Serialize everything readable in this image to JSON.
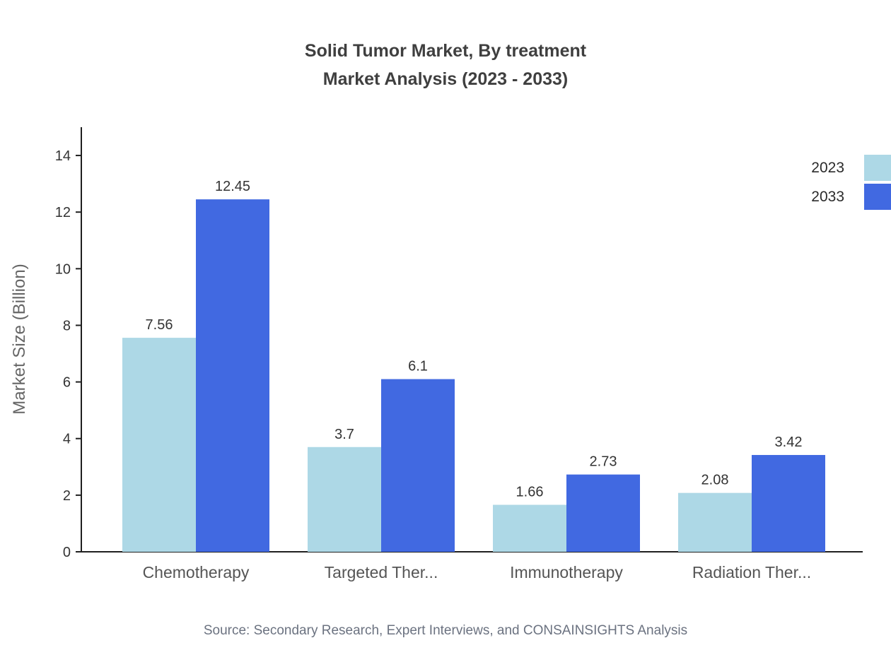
{
  "title": {
    "line1": "Solid Tumor Market, By treatment",
    "line2": "Market Analysis (2023 - 2033)"
  },
  "source": "Source: Secondary Research, Expert Interviews, and CONSAINSIGHTS Analysis",
  "colors": {
    "series_2023": "#ADD8E6",
    "series_2033": "#4169E1",
    "axis": "#1f1f1f",
    "tick_text": "#333333",
    "category_text": "#555555",
    "value_text": "#333333",
    "ylabel_text": "#666666"
  },
  "chart_data": {
    "type": "bar",
    "title": "Solid Tumor Market, By treatment Market Analysis (2023 - 2033)",
    "categories": [
      "Chemotherapy",
      "Targeted Ther...",
      "Immunotherapy",
      "Radiation Ther..."
    ],
    "series": [
      {
        "name": "2023",
        "color": "#ADD8E6",
        "values": [
          7.56,
          3.7,
          1.66,
          2.08
        ]
      },
      {
        "name": "2033",
        "color": "#4169E1",
        "values": [
          12.45,
          6.1,
          2.73,
          3.42
        ]
      }
    ],
    "xlabel": "",
    "ylabel": "Market Size (Billion)",
    "yticks": [
      0,
      2,
      4,
      6,
      8,
      10,
      12,
      14
    ],
    "ylim": [
      0,
      15
    ],
    "grid": false,
    "legend_position": "top-right",
    "legend": [
      "2023",
      "2033"
    ]
  }
}
